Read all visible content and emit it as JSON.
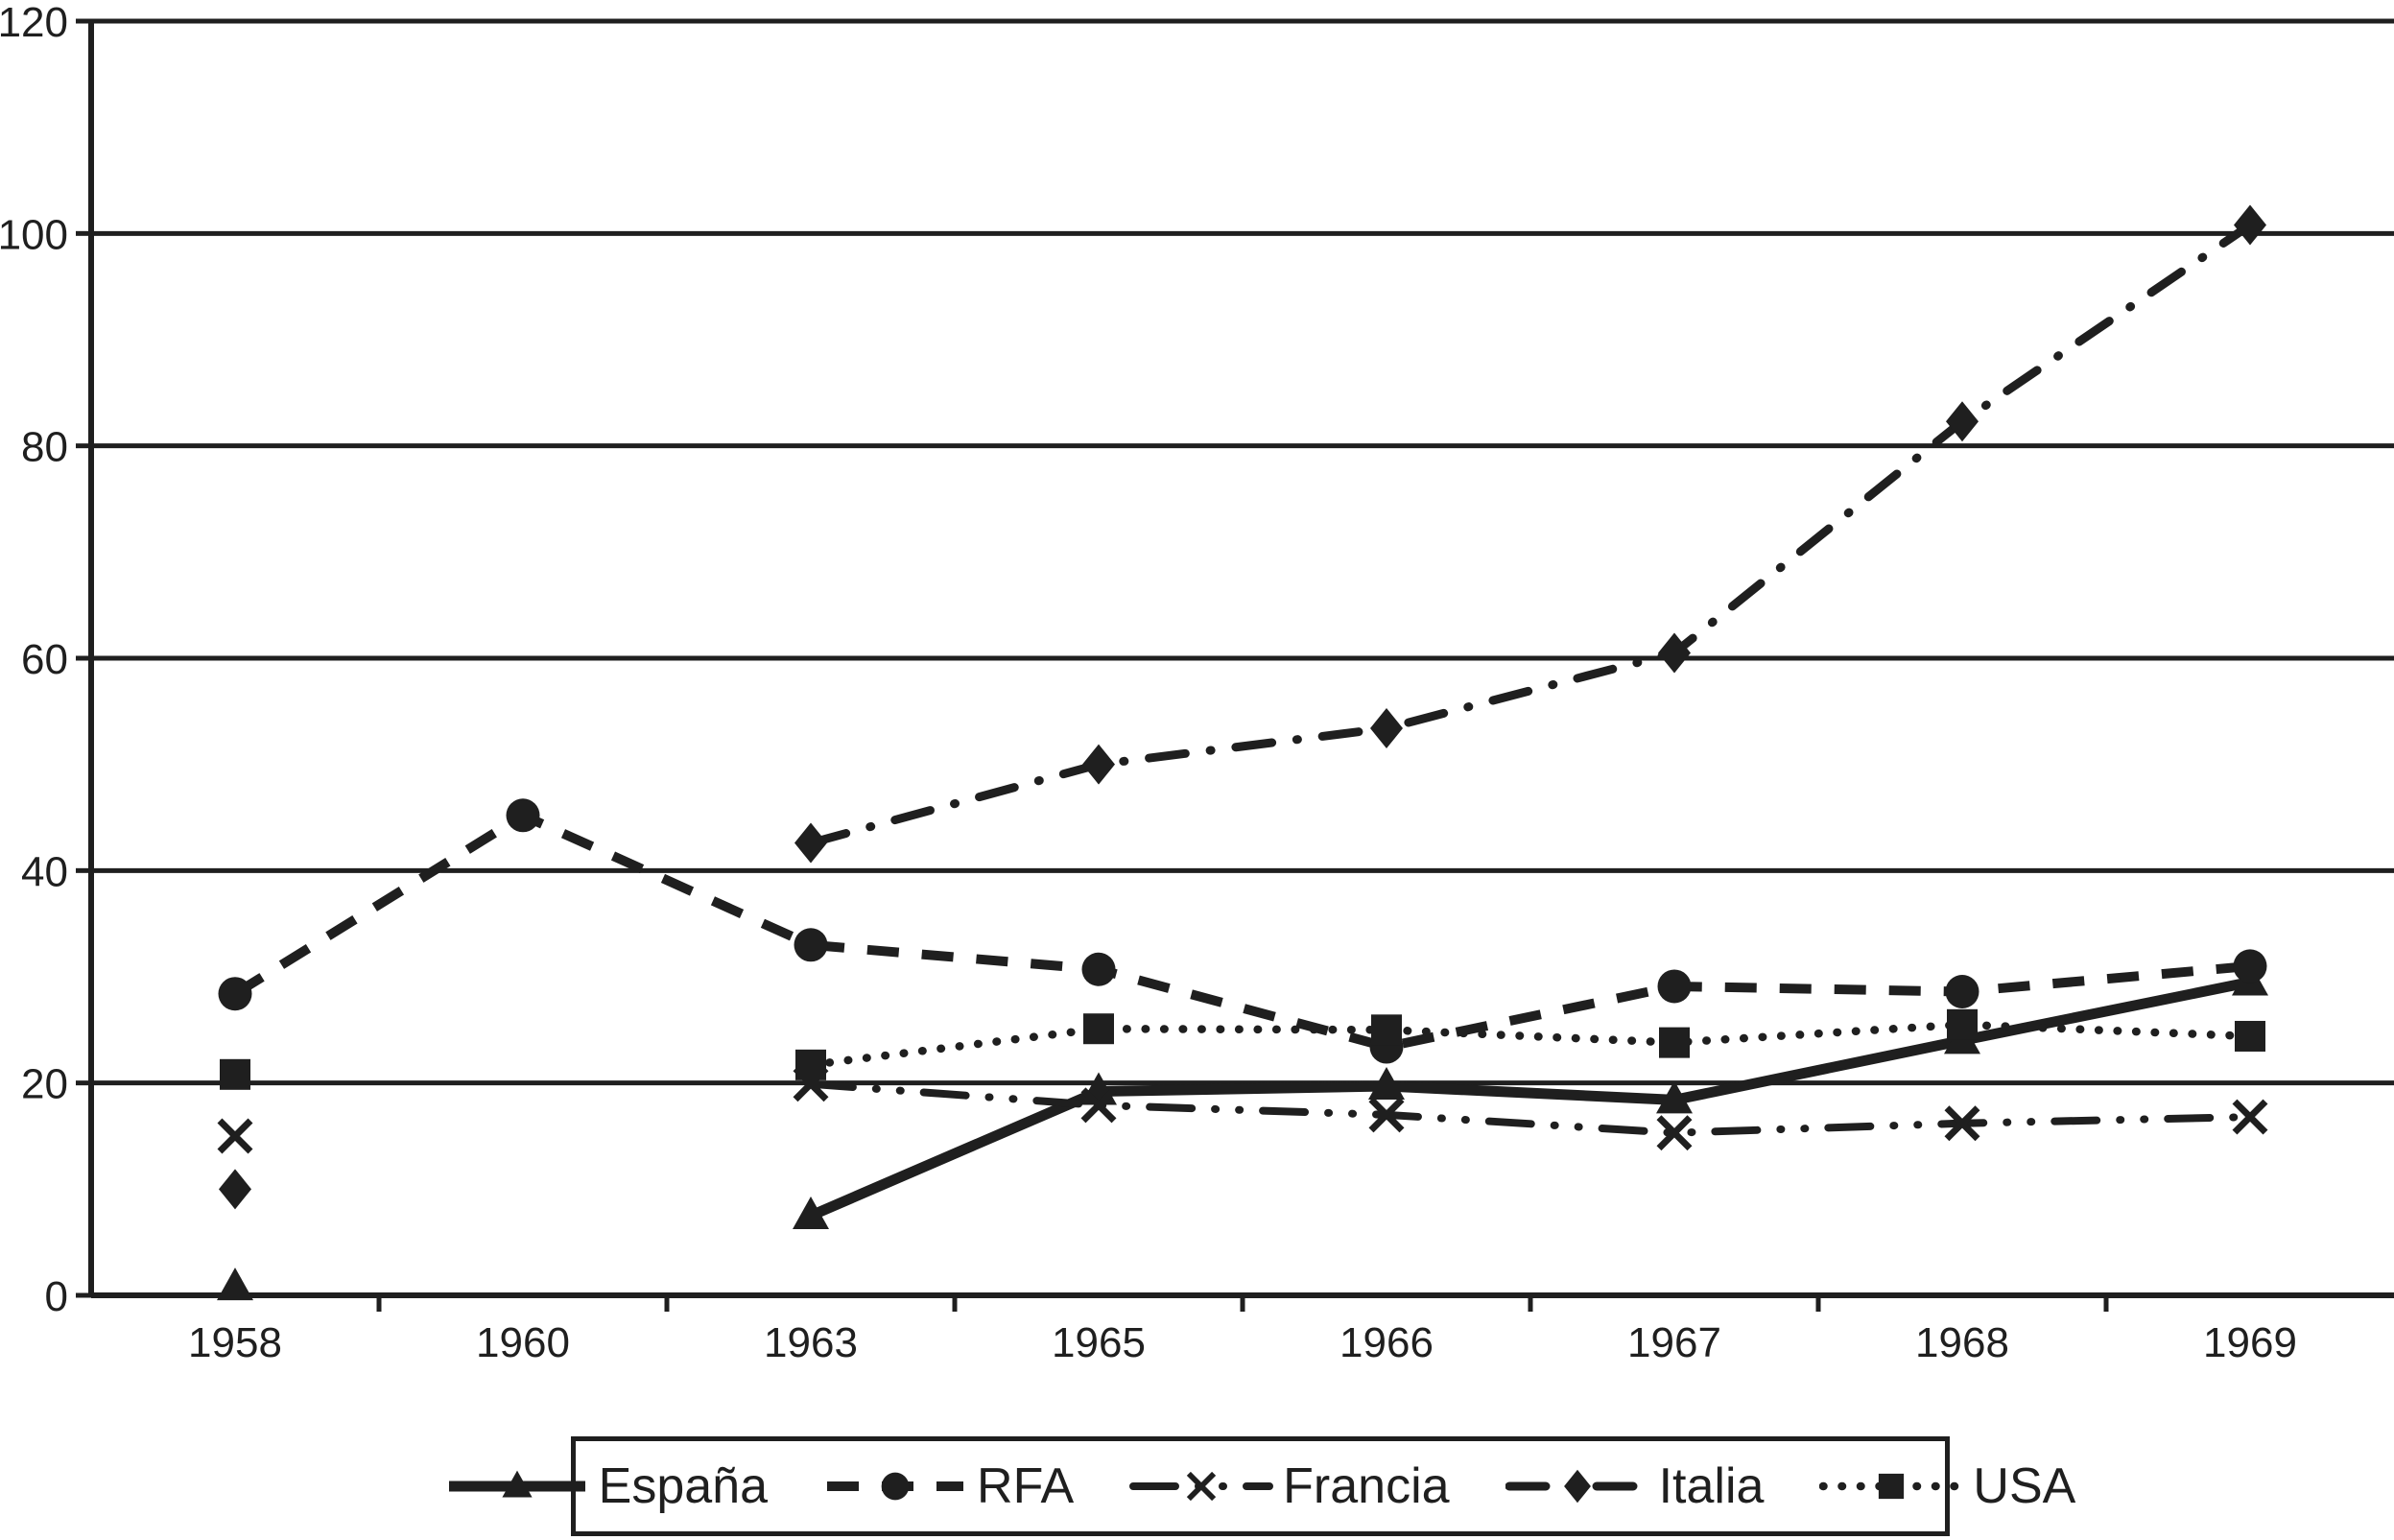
{
  "page": {
    "background_color": "#ffffff",
    "ink_color": "#1f1f1f"
  },
  "chart_data": {
    "type": "line",
    "title": "",
    "xlabel": "",
    "ylabel": "",
    "categories": [
      "1958",
      "1960",
      "1963",
      "1965",
      "1966",
      "1967",
      "1968",
      "1969"
    ],
    "y_ticks": [
      0,
      20,
      40,
      60,
      80,
      100,
      120
    ],
    "ylim": [
      0,
      120
    ],
    "grid": "horizontal-only",
    "legend_position": "bottom-boxed",
    "series": [
      {
        "name": "España",
        "marker": "triangle",
        "line_style": "solid",
        "values": [
          0.8,
          null,
          7.5,
          19.2,
          19.7,
          18.4,
          24.0,
          29.5
        ]
      },
      {
        "name": "RFA",
        "marker": "circle",
        "line_style": "dashed",
        "values": [
          28.4,
          45.2,
          33.0,
          30.7,
          23.4,
          29.1,
          28.6,
          31.0
        ]
      },
      {
        "name": "Francia",
        "marker": "x",
        "line_style": "dash-dot-dot",
        "values": [
          15.0,
          null,
          19.9,
          17.9,
          17.0,
          15.3,
          16.2,
          16.8
        ]
      },
      {
        "name": "Italia",
        "marker": "diamond",
        "line_style": "dash-dot",
        "values": [
          10.0,
          null,
          42.6,
          50.0,
          53.4,
          60.5,
          82.3,
          100.8
        ]
      },
      {
        "name": "USA",
        "marker": "square",
        "line_style": "dotted",
        "values": [
          20.8,
          null,
          21.7,
          25.1,
          25.0,
          23.8,
          25.5,
          24.4
        ]
      }
    ]
  }
}
